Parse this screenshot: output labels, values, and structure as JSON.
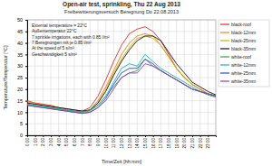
{
  "chart_data": {
    "type": "line",
    "title": "Open-air test, sprinkling, Thu 22 Aug 2013",
    "subtitle": "Freibewitterungsversuch Beregnung Do 22.08.2013",
    "x_label": "Time/Zeit [hh:mm]",
    "y_label": "Temperature/Temperatur [°C]",
    "annotations": [
      "External temperature = 22°C",
      "Außentemperatur 22°C",
      "7 sprinkle irrigations, each with 0.85 l/m²",
      "7 Beregnungen mit je 0.85 l/m²",
      "At the speed of 5 s/m²",
      "Geschwindigkeit 5 s/m²"
    ],
    "x": [
      0,
      1,
      2,
      3,
      4,
      5,
      6,
      7,
      8,
      9,
      10,
      11,
      12,
      13,
      14,
      15,
      16,
      17,
      18,
      19,
      20,
      21,
      22,
      23,
      24
    ],
    "xlim": [
      0,
      24
    ],
    "xticks": [
      {
        "value": 0,
        "label": "0:00"
      },
      {
        "value": 1,
        "label": "1:00"
      },
      {
        "value": 2,
        "label": "2:00"
      },
      {
        "value": 3,
        "label": "3:00"
      },
      {
        "value": 4,
        "label": "4:00"
      },
      {
        "value": 5,
        "label": "5:00"
      },
      {
        "value": 6,
        "label": "6:00"
      },
      {
        "value": 7,
        "label": "7:00"
      },
      {
        "value": 8,
        "label": "8:00"
      },
      {
        "value": 9,
        "label": "9:00"
      },
      {
        "value": 10,
        "label": "10:00"
      },
      {
        "value": 11,
        "label": "11:00"
      },
      {
        "value": 12,
        "label": "12:00"
      },
      {
        "value": 13,
        "label": "13:00"
      },
      {
        "value": 14,
        "label": "14:00"
      },
      {
        "value": 15,
        "label": "15:00"
      },
      {
        "value": 16,
        "label": "16:00"
      },
      {
        "value": 17,
        "label": "17:00"
      },
      {
        "value": 18,
        "label": "18:00"
      },
      {
        "value": 19,
        "label": "19:00"
      },
      {
        "value": 20,
        "label": "20:00"
      },
      {
        "value": 21,
        "label": "21:00"
      },
      {
        "value": 22,
        "label": "22:00"
      },
      {
        "value": 23,
        "label": "23:00"
      }
    ],
    "ylim": [
      0,
      50
    ],
    "yticks": [
      0,
      5,
      10,
      15,
      20,
      25,
      30,
      35,
      40,
      45,
      50
    ],
    "grid": true,
    "legend": "right",
    "series": [
      {
        "name": "black-roof",
        "color": "#e0302a",
        "values": [
          15,
          14,
          13.5,
          13,
          12,
          11.5,
          11,
          10.5,
          12,
          17,
          24,
          32,
          39,
          44,
          46,
          47,
          45,
          41,
          35,
          29,
          25,
          22,
          20,
          18,
          17
        ]
      },
      {
        "name": "black-12mm",
        "color": "#f08020",
        "values": [
          14.5,
          14,
          13,
          12.5,
          12,
          11,
          10.5,
          10,
          11,
          15,
          21,
          28,
          35,
          40,
          43,
          44,
          43,
          39,
          34,
          29,
          25,
          22,
          20,
          18,
          17
        ]
      },
      {
        "name": "black-25mm",
        "color": "#c8b400",
        "values": [
          14,
          13.5,
          13,
          12,
          11.5,
          11,
          10.5,
          10,
          11,
          14,
          20,
          27,
          33,
          38,
          42,
          43,
          42,
          39,
          34,
          29,
          25,
          22,
          20,
          18,
          17
        ]
      },
      {
        "name": "black-35mm",
        "color": "#111111",
        "values": [
          14,
          13.5,
          13,
          12.5,
          12,
          11.5,
          11,
          10.5,
          11,
          14,
          19,
          26,
          32,
          37,
          41,
          43,
          43,
          41,
          36,
          31,
          27,
          23,
          21,
          19,
          17.5
        ]
      },
      {
        "name": "white-roof",
        "color": "#3aa040",
        "values": [
          13.5,
          13,
          12.5,
          12,
          11.5,
          11,
          10.5,
          10,
          11,
          13,
          17,
          21,
          25,
          27,
          28,
          33,
          30,
          28,
          26,
          24,
          22,
          20,
          19,
          17.5,
          16.5
        ]
      },
      {
        "name": "white-12mm",
        "color": "#20b0c0",
        "values": [
          13.5,
          13,
          12.5,
          12,
          11.5,
          11,
          10.5,
          10,
          10.5,
          13,
          17,
          23,
          29,
          31,
          30,
          35,
          32,
          29,
          27,
          25,
          23,
          21,
          19,
          18,
          17
        ]
      },
      {
        "name": "white-25mm",
        "color": "#2050d0",
        "values": [
          13,
          12.5,
          12,
          11.5,
          11,
          10.5,
          10,
          9.5,
          10,
          12,
          16,
          22,
          27,
          29,
          29,
          33,
          31,
          28,
          26,
          24,
          22,
          20,
          19,
          18,
          17
        ]
      },
      {
        "name": "white-35mm",
        "color": "#9040b0",
        "values": [
          13,
          12.5,
          12,
          11.5,
          11,
          10.5,
          10,
          9.5,
          10,
          12,
          15,
          20,
          25,
          27,
          27,
          31,
          30,
          28,
          26,
          24,
          22,
          20,
          19,
          18,
          17
        ]
      }
    ]
  }
}
